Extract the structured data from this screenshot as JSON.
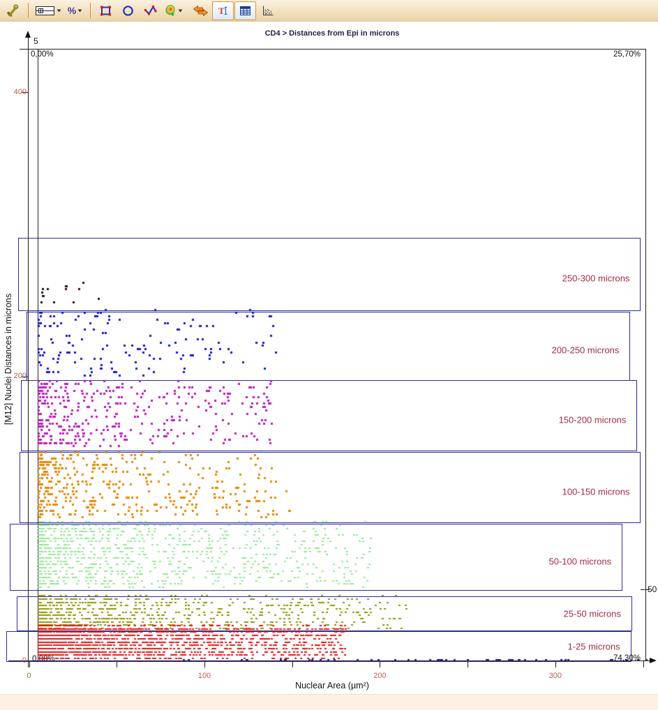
{
  "toolbar": {
    "percent_label": "%",
    "items": [
      {
        "name": "tools",
        "icon": "tools-icon"
      },
      {
        "name": "quadrant-template",
        "icon": "quadrant-grid-icon",
        "dropdown": true
      },
      {
        "name": "percent-display",
        "icon": "percent-icon",
        "dropdown": true
      },
      {
        "name": "rectangle-gate",
        "icon": "rectangle-gate-icon"
      },
      {
        "name": "ellipse-gate",
        "icon": "ellipse-gate-icon"
      },
      {
        "name": "polygon-gate",
        "icon": "polygon-gate-icon"
      },
      {
        "name": "freehand-gate",
        "icon": "density-blob-icon",
        "dropdown": true
      },
      {
        "name": "swap-axes",
        "icon": "swap-axes-icon"
      },
      {
        "name": "toggle-labels",
        "icon": "text-label-icon",
        "active": true
      },
      {
        "name": "toggle-table",
        "icon": "table-icon",
        "active": true
      },
      {
        "name": "scatter-view",
        "icon": "scatter-plot-icon"
      }
    ]
  },
  "chart": {
    "title": "CD4 > Distances from Epi in microns",
    "x_axis": {
      "label": "Nuclear Area (µm²)",
      "tick_labels": [
        "0",
        "100",
        "200",
        "300"
      ],
      "tick_values": [
        0,
        100,
        200,
        300
      ],
      "minor_tick_step": 50,
      "max": 355
    },
    "y_axis": {
      "label": "[M12] Nuclei Distances in microns",
      "tick_labels": [
        "0",
        "200",
        "400"
      ],
      "tick_values": [
        0,
        200,
        400
      ],
      "max": 440
    },
    "quadrant": {
      "x_cut_label": "5",
      "y_cut_label": "50",
      "upper_left_pct": "0,00%",
      "upper_right_pct": "25,70%",
      "lower_left_pct": "0,08%",
      "lower_right_pct": "74,30%"
    },
    "colors": {
      "axis": "#1a1a1a",
      "tick_label": "#b3604a",
      "gate_border": "#2a2aa4",
      "gate_label": "#a12d43",
      "quadrant_label": "#111111"
    }
  },
  "chart_data": {
    "type": "scatter",
    "title": "CD4 > Distances from Epi in microns",
    "xlabel": "Nuclear Area (µm²)",
    "ylabel": "[M12] Nuclei Distances in microns",
    "xlim": [
      0,
      355
    ],
    "ylim": [
      0,
      440
    ],
    "x_ticks": [
      0,
      100,
      200,
      300
    ],
    "y_ticks": [
      0,
      200,
      400
    ],
    "grid": false,
    "quadrant_cut": {
      "x": 5,
      "y": 50
    },
    "quadrant_percentages": {
      "upper_left": "0,00%",
      "upper_right": "25,70%",
      "lower_left": "0,08%",
      "lower_right": "74,30%"
    },
    "gates": [
      {
        "label": "250-300 microns",
        "x1": -6,
        "x2": 348,
        "y1": 247,
        "y2": 297.5
      },
      {
        "label": "200-250 microns",
        "x1": -1.5,
        "x2": 342,
        "y1": 198,
        "y2": 245.5
      },
      {
        "label": "150-200 microns",
        "x1": -4.5,
        "x2": 346,
        "y1": 148,
        "y2": 197.5
      },
      {
        "label": "100-150 microns",
        "x1": -5.5,
        "x2": 348,
        "y1": 97.5,
        "y2": 147
      },
      {
        "label": "50-100 microns",
        "x1": -11,
        "x2": 337.5,
        "y1": 50,
        "y2": 96
      },
      {
        "label": "25-50 microns",
        "x1": -7,
        "x2": 343,
        "y1": 21.5,
        "y2": 45
      },
      {
        "label": "1-25 microns",
        "x1": -13,
        "x2": 342.5,
        "y1": 0,
        "y2": 20.5
      }
    ],
    "bands": [
      {
        "name": "250-300 microns",
        "color": "#2e0c22",
        "count": 14,
        "x_min": 6,
        "x_max": 52,
        "x_power": 1.2,
        "y_min": 249,
        "y_max": 266,
        "y_step": 2.3,
        "point": [
          3,
          3
        ]
      },
      {
        "name": "200-250 microns",
        "color": "#1818cf",
        "count": 155,
        "x_min": 5,
        "x_max": 142,
        "x_power": 1.8,
        "y_min": 200,
        "y_max": 247,
        "y_step": 2.3,
        "point": [
          3,
          3
        ]
      },
      {
        "name": "150-200 microns",
        "color": "#bf17bf",
        "count": 400,
        "x_min": 5,
        "x_max": 138,
        "x_power": 2.0,
        "y_min": 150,
        "y_max": 198,
        "y_step": 2.3,
        "point": [
          3,
          3
        ]
      },
      {
        "name": "100-150 microns",
        "color": "#e88600",
        "count": 420,
        "x_min": 5,
        "x_max": 150,
        "x_power": 2.1,
        "y_min": 100,
        "y_max": 147,
        "y_step": 2.3,
        "point": [
          3,
          3
        ]
      },
      {
        "name": "50-100 microns",
        "color": "#92e692",
        "count": 1050,
        "x_min": 5,
        "x_max": 195,
        "x_power": 2.4,
        "y_min": 51,
        "y_max": 97,
        "y_step": 2.3,
        "point": [
          3,
          2
        ]
      },
      {
        "name": "25-50 microns",
        "color": "#8f9200",
        "count": 900,
        "x_min": 5,
        "x_max": 215,
        "x_power": 2.6,
        "y_min": 22,
        "y_max": 47,
        "y_step": 2.3,
        "point": [
          3,
          2
        ]
      },
      {
        "name": "1-25 microns",
        "color": "#e01212",
        "count": 2100,
        "x_min": 5,
        "x_max": 180,
        "x_power": 2.5,
        "y_min": 1,
        "y_max": 24,
        "y_step": 2.3,
        "point": [
          3,
          2
        ]
      },
      {
        "name": "baseline",
        "color": "#17175e",
        "count": 52,
        "x_min": 85,
        "x_max": 352,
        "x_power": 0.85,
        "y_min": 0,
        "y_max": 0,
        "y_step": 0,
        "point": [
          3,
          2
        ]
      }
    ]
  }
}
